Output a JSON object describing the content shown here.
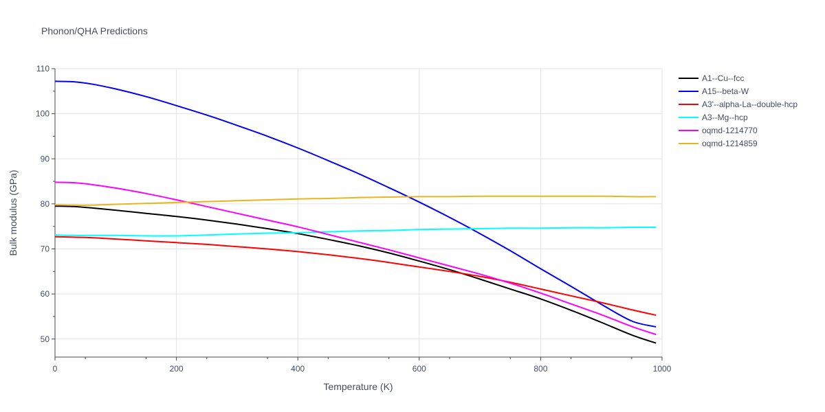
{
  "chart_data": {
    "type": "line",
    "title": "Phonon/QHA Predictions",
    "xlabel": "Temperature (K)",
    "ylabel": "Bulk modulus (GPa)",
    "xlim": [
      0,
      1000
    ],
    "ylim": [
      46,
      110
    ],
    "xticks": [
      0,
      200,
      400,
      600,
      800,
      1000
    ],
    "yticks": [
      50,
      60,
      70,
      80,
      90,
      100,
      110
    ],
    "grid": true,
    "legend_position": "top-right",
    "x": [
      0,
      30,
      60,
      100,
      150,
      200,
      250,
      300,
      350,
      400,
      450,
      500,
      550,
      600,
      650,
      700,
      750,
      800,
      850,
      900,
      950,
      990
    ],
    "series": [
      {
        "name": "A1--Cu--fcc",
        "color": "#000000",
        "values": [
          79.5,
          79.4,
          79.1,
          78.6,
          77.9,
          77.2,
          76.4,
          75.5,
          74.5,
          73.4,
          72.1,
          70.7,
          69.1,
          67.3,
          65.4,
          63.3,
          61.1,
          58.9,
          56.4,
          53.7,
          50.9,
          49.1
        ]
      },
      {
        "name": "A15--beta-W",
        "color": "#0000ff",
        "values": [
          107.2,
          107.1,
          106.6,
          105.5,
          103.8,
          101.8,
          99.7,
          97.4,
          95.0,
          92.4,
          89.6,
          86.7,
          83.6,
          80.4,
          77.0,
          73.4,
          69.6,
          65.6,
          61.7,
          57.7,
          54.0,
          52.7
        ]
      },
      {
        "name": "A3'--alpha-La--double-hcp",
        "color": "#ff0000",
        "values": [
          72.7,
          72.6,
          72.5,
          72.2,
          71.8,
          71.4,
          71.0,
          70.5,
          70.0,
          69.4,
          68.7,
          67.9,
          67.0,
          66.0,
          65.0,
          63.9,
          62.6,
          61.1,
          59.6,
          58.1,
          56.5,
          55.3
        ]
      },
      {
        "name": "A3--Mg--hcp",
        "color": "#00ffff",
        "values": [
          73.1,
          73.0,
          73.0,
          73.0,
          72.9,
          72.9,
          73.1,
          73.3,
          73.5,
          73.6,
          73.8,
          74.0,
          74.1,
          74.3,
          74.4,
          74.5,
          74.6,
          74.6,
          74.7,
          74.7,
          74.8,
          74.8
        ]
      },
      {
        "name": "oqmd-1214770",
        "color": "#ff00ff",
        "values": [
          84.8,
          84.7,
          84.3,
          83.5,
          82.3,
          80.9,
          79.4,
          77.9,
          76.4,
          74.9,
          73.2,
          71.5,
          69.8,
          68.0,
          66.2,
          64.4,
          62.4,
          60.2,
          57.8,
          55.4,
          52.8,
          51.0
        ]
      },
      {
        "name": "oqmd-1214859",
        "color": "#e8b51e",
        "values": [
          79.8,
          79.7,
          79.7,
          79.9,
          80.1,
          80.3,
          80.5,
          80.7,
          80.9,
          81.1,
          81.2,
          81.4,
          81.5,
          81.6,
          81.6,
          81.7,
          81.7,
          81.7,
          81.7,
          81.7,
          81.6,
          81.6
        ]
      }
    ]
  }
}
